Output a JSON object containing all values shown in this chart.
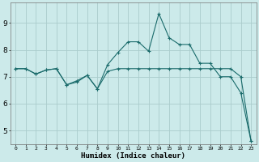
{
  "xlabel": "Humidex (Indice chaleur)",
  "ylabel": "",
  "background_color": "#cceaea",
  "grid_color": "#aacccc",
  "line_color": "#1a6b6b",
  "xlim": [
    -0.5,
    23.5
  ],
  "ylim": [
    4.5,
    9.75
  ],
  "xticks": [
    0,
    1,
    2,
    3,
    4,
    5,
    6,
    7,
    8,
    9,
    10,
    11,
    12,
    13,
    14,
    15,
    16,
    17,
    18,
    19,
    20,
    21,
    22,
    23
  ],
  "yticks": [
    5,
    6,
    7,
    8,
    9
  ],
  "line1_x": [
    0,
    1,
    2,
    3,
    4,
    5,
    6,
    7,
    8,
    9,
    10,
    11,
    12,
    13,
    14,
    15,
    16,
    17,
    18,
    19,
    20,
    21,
    22,
    23
  ],
  "line1_y": [
    7.3,
    7.3,
    7.1,
    7.25,
    7.3,
    6.7,
    6.8,
    7.05,
    6.55,
    7.2,
    7.3,
    7.3,
    7.3,
    7.3,
    7.3,
    7.3,
    7.3,
    7.3,
    7.3,
    7.3,
    7.3,
    7.3,
    7.0,
    4.6
  ],
  "line2_x": [
    0,
    1,
    2,
    3,
    4,
    5,
    6,
    7,
    8,
    9,
    10,
    11,
    12,
    13,
    14,
    15,
    16,
    17,
    18,
    19,
    20,
    21,
    22,
    23
  ],
  "line2_y": [
    7.3,
    7.3,
    7.1,
    7.25,
    7.3,
    6.7,
    6.85,
    7.05,
    6.55,
    7.45,
    7.9,
    8.3,
    8.3,
    7.95,
    9.35,
    8.45,
    8.2,
    8.2,
    7.5,
    7.5,
    7.0,
    7.0,
    6.4,
    4.6
  ]
}
